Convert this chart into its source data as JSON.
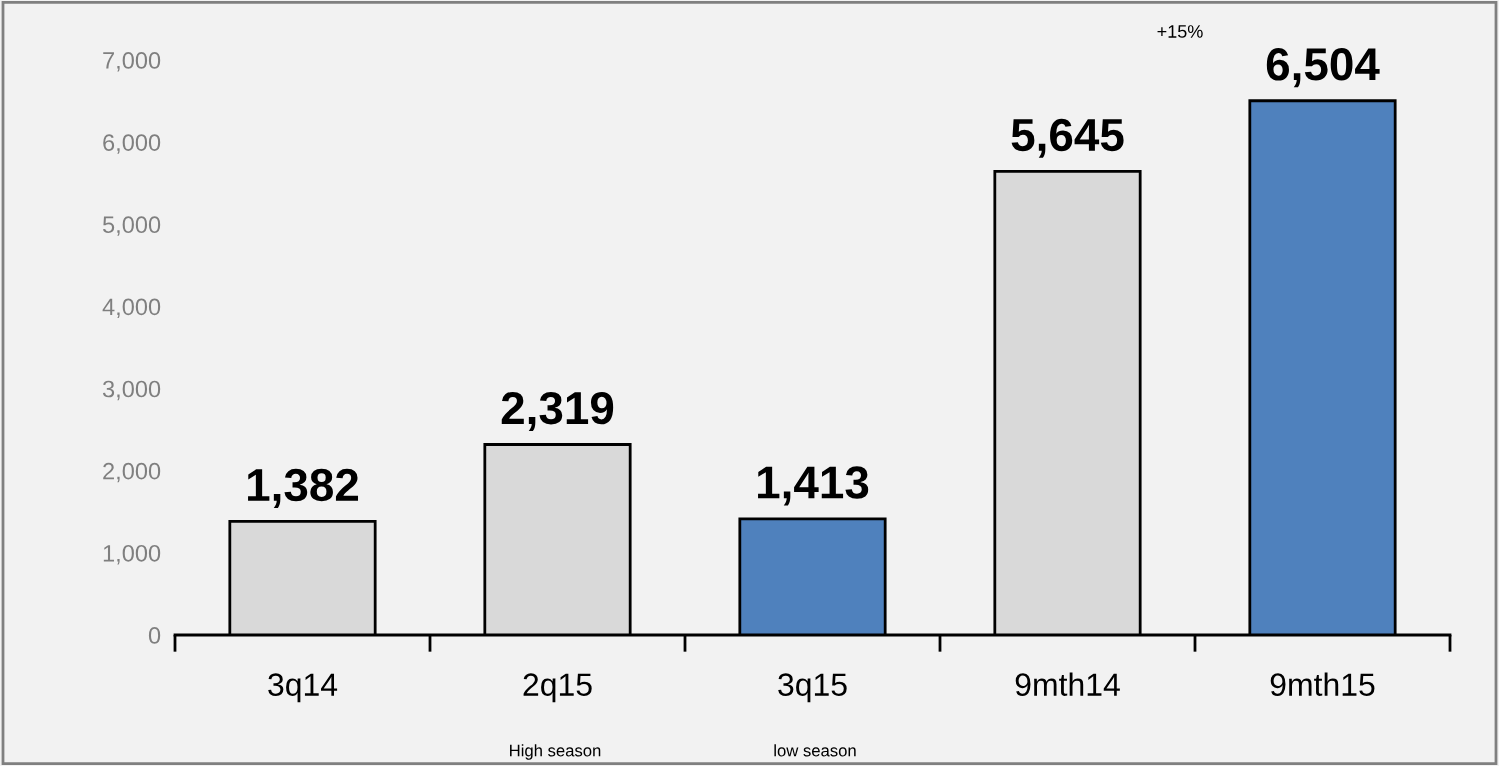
{
  "chart_data": {
    "type": "bar",
    "categories": [
      "3q14",
      "2q15",
      "3q15",
      "9mth14",
      "9mth15"
    ],
    "values": [
      1382,
      2319,
      1413,
      5645,
      6504
    ],
    "colors": [
      "#d9d9d9",
      "#d9d9d9",
      "#4f81bd",
      "#d9d9d9",
      "#4f81bd"
    ],
    "ylim": [
      0,
      7000
    ],
    "yticks": [
      0,
      {
        "value": 1000,
        "label": "1,000"
      },
      {
        "value": 2000,
        "label": "2,000"
      },
      {
        "value": 3000,
        "label": "3,000"
      },
      {
        "value": 4000,
        "label": "4,000"
      },
      {
        "value": 5000,
        "label": "5,000"
      },
      {
        "value": 6000,
        "label": "6,000"
      },
      {
        "value": 7000,
        "label": "7,000"
      }
    ],
    "value_labels": [
      "1,382",
      "2,319",
      "1,413",
      "5,645",
      "6,504"
    ],
    "annotations": [
      "+15%",
      "High season",
      "low season"
    ],
    "grid": false
  }
}
